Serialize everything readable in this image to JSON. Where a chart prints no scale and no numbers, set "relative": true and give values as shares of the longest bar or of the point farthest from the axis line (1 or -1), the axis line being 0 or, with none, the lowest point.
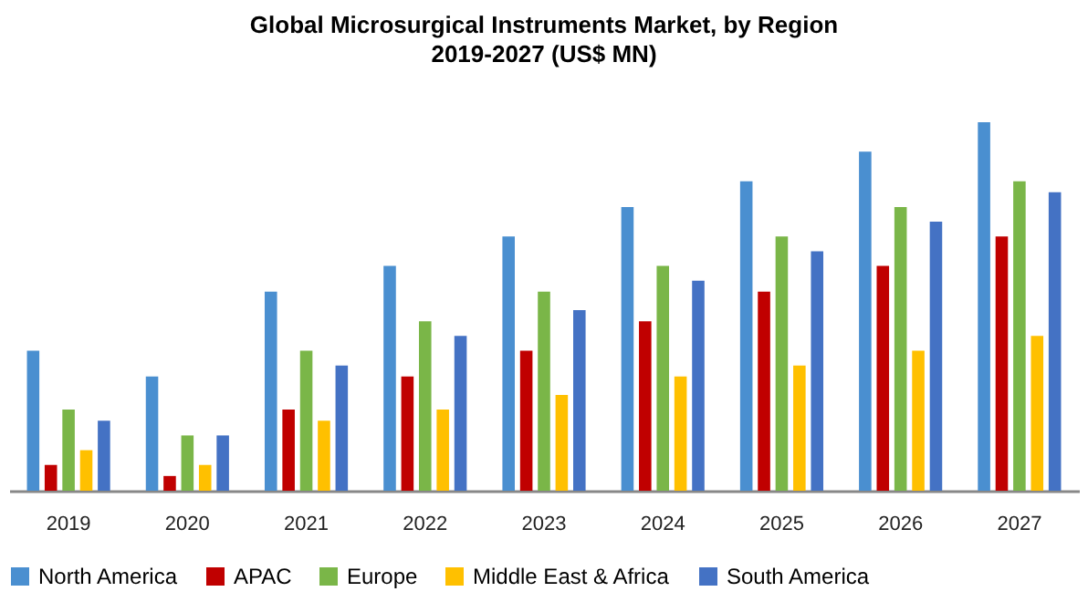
{
  "chart_data": {
    "type": "bar",
    "title": "Global Microsurgical Instruments Market, by Region",
    "subtitle": "2019-2027 (US$ MN)",
    "categories": [
      "2019",
      "2020",
      "2021",
      "2022",
      "2023",
      "2024",
      "2025",
      "2026",
      "2027"
    ],
    "relative": true,
    "legend": "bottom",
    "grid": false,
    "series": [
      {
        "name": "North America",
        "color": "#4a8fd0",
        "values": [
          0.38,
          0.31,
          0.54,
          0.61,
          0.69,
          0.77,
          0.84,
          0.92,
          1
        ]
      },
      {
        "name": "APAC",
        "color": "#c00000",
        "values": [
          0.07,
          0.04,
          0.22,
          0.31,
          0.38,
          0.46,
          0.54,
          0.61,
          0.69
        ]
      },
      {
        "name": "Europe",
        "color": "#7ab648",
        "values": [
          0.22,
          0.15,
          0.38,
          0.46,
          0.54,
          0.61,
          0.69,
          0.77,
          0.84
        ]
      },
      {
        "name": "Middle East & Africa",
        "color": "#ffc000",
        "values": [
          0.11,
          0.07,
          0.19,
          0.22,
          0.26,
          0.31,
          0.34,
          0.38,
          0.42
        ]
      },
      {
        "name": "South America",
        "color": "#4472c4",
        "values": [
          0.19,
          0.15,
          0.34,
          0.42,
          0.49,
          0.57,
          0.65,
          0.73,
          0.81
        ]
      }
    ]
  }
}
